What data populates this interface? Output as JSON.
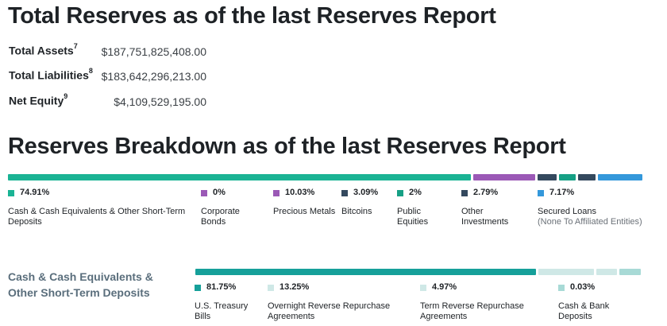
{
  "title": "Total Reserves as of the last Reserves Report",
  "summary": [
    {
      "label": "Total Assets",
      "note": "7",
      "value": "$187,751,825,408.00"
    },
    {
      "label": "Total Liabilities",
      "note": "8",
      "value": "$183,642,296,213.00"
    },
    {
      "label": "Net Equity",
      "note": "9",
      "value": "$4,109,529,195.00"
    }
  ],
  "breakdown_title": "Reserves Breakdown as of the last Reserves Report",
  "breakdown": [
    {
      "pct": "74.91%",
      "name": "Cash & Cash Equivalents & Other Short-Term Deposits",
      "sub": "",
      "value": 74.91,
      "color": "#1ab394"
    },
    {
      "pct": "0%",
      "name": "Corporate Bonds",
      "sub": "",
      "value": 0,
      "color": "#9b59b6"
    },
    {
      "pct": "10.03%",
      "name": "Precious Metals",
      "sub": "",
      "value": 10.03,
      "color": "#9b59b6"
    },
    {
      "pct": "3.09%",
      "name": "Bitcoins",
      "sub": "",
      "value": 3.09,
      "color": "#34495e"
    },
    {
      "pct": "2%",
      "name": "Public Equities",
      "sub": "",
      "value": 2,
      "color": "#16a085"
    },
    {
      "pct": "2.79%",
      "name": "Other Investments",
      "sub": "",
      "value": 2.79,
      "color": "#34495e"
    },
    {
      "pct": "7.17%",
      "name": "Secured Loans",
      "sub": "(None To Affiliated Entities)",
      "value": 7.17,
      "color": "#3498db"
    }
  ],
  "cash_title": "Cash & Cash Equivalents & Other Short-Term Deposits",
  "cash": [
    {
      "pct": "81.75%",
      "name": "U.S. Treasury Bills",
      "value": 81.75,
      "color": "#16a09a"
    },
    {
      "pct": "13.25%",
      "name": "Overnight Reverse Repurchase Agreements",
      "value": 13.25,
      "color": "#cfe8e6"
    },
    {
      "pct": "4.97%",
      "name": "Term Reverse Repurchase Agreements",
      "value": 4.97,
      "color": "#cfe8e6"
    },
    {
      "pct": "0.03%",
      "name": "Cash & Bank Deposits",
      "value": 0.03,
      "color": "#a8dad6"
    }
  ]
}
